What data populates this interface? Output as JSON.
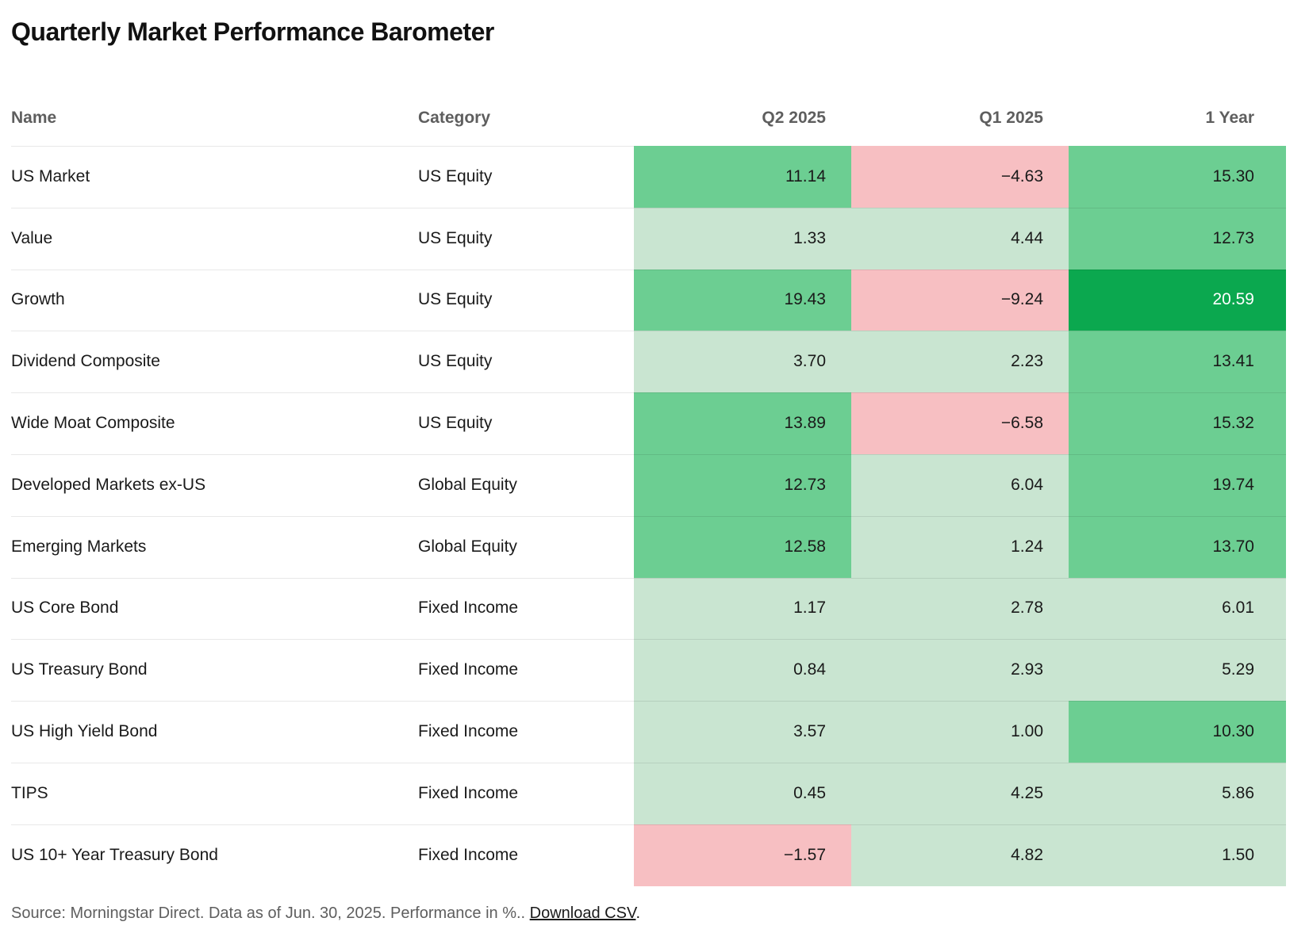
{
  "title": "Quarterly Market Performance Barometer",
  "table": {
    "columns": [
      {
        "label": "Name"
      },
      {
        "label": "Category"
      },
      {
        "label": "Q2 2025"
      },
      {
        "label": "Q1 2025"
      },
      {
        "label": "1 Year"
      }
    ]
  },
  "footer": {
    "source_text": "Source: Morningstar Direct. Data as of Jun. 30, 2025. Performance in %.. ",
    "link_label": "Download CSV",
    "after_link": "."
  },
  "chart_data": {
    "type": "heatmap",
    "title": "Quarterly Market Performance Barometer",
    "unit": "percent",
    "value_columns": [
      "Q2 2025",
      "Q1 2025",
      "1 Year"
    ],
    "rows": [
      {
        "name": "US Market",
        "category": "US Equity",
        "values": [
          11.14,
          -4.63,
          15.3
        ]
      },
      {
        "name": "Value",
        "category": "US Equity",
        "values": [
          1.33,
          4.44,
          12.73
        ]
      },
      {
        "name": "Growth",
        "category": "US Equity",
        "values": [
          19.43,
          -9.24,
          20.59
        ]
      },
      {
        "name": "Dividend Composite",
        "category": "US Equity",
        "values": [
          3.7,
          2.23,
          13.41
        ]
      },
      {
        "name": "Wide Moat Composite",
        "category": "US Equity",
        "values": [
          13.89,
          -6.58,
          15.32
        ]
      },
      {
        "name": "Developed Markets ex-US",
        "category": "Global Equity",
        "values": [
          12.73,
          6.04,
          19.74
        ]
      },
      {
        "name": "Emerging Markets",
        "category": "Global Equity",
        "values": [
          12.58,
          1.24,
          13.7
        ]
      },
      {
        "name": "US Core Bond",
        "category": "Fixed Income",
        "values": [
          1.17,
          2.78,
          6.01
        ]
      },
      {
        "name": "US Treasury Bond",
        "category": "Fixed Income",
        "values": [
          0.84,
          2.93,
          5.29
        ]
      },
      {
        "name": "US High Yield Bond",
        "category": "Fixed Income",
        "values": [
          3.57,
          1.0,
          10.3
        ]
      },
      {
        "name": "TIPS",
        "category": "Fixed Income",
        "values": [
          0.45,
          4.25,
          5.86
        ]
      },
      {
        "name": "US 10+ Year Treasury Bond",
        "category": "Fixed Income",
        "values": [
          -1.57,
          4.82,
          1.5
        ]
      }
    ],
    "color_scale": {
      "negative": "#F7BFC2",
      "light_positive": "#C9E5D1",
      "medium_positive": "#6CCE92",
      "strong_positive": "#0BA84F",
      "thresholds": {
        "medium_min": 10,
        "strong_min": 20
      },
      "text_default": "#1A1A1A",
      "text_on_strong": "#FFFFFF"
    }
  }
}
